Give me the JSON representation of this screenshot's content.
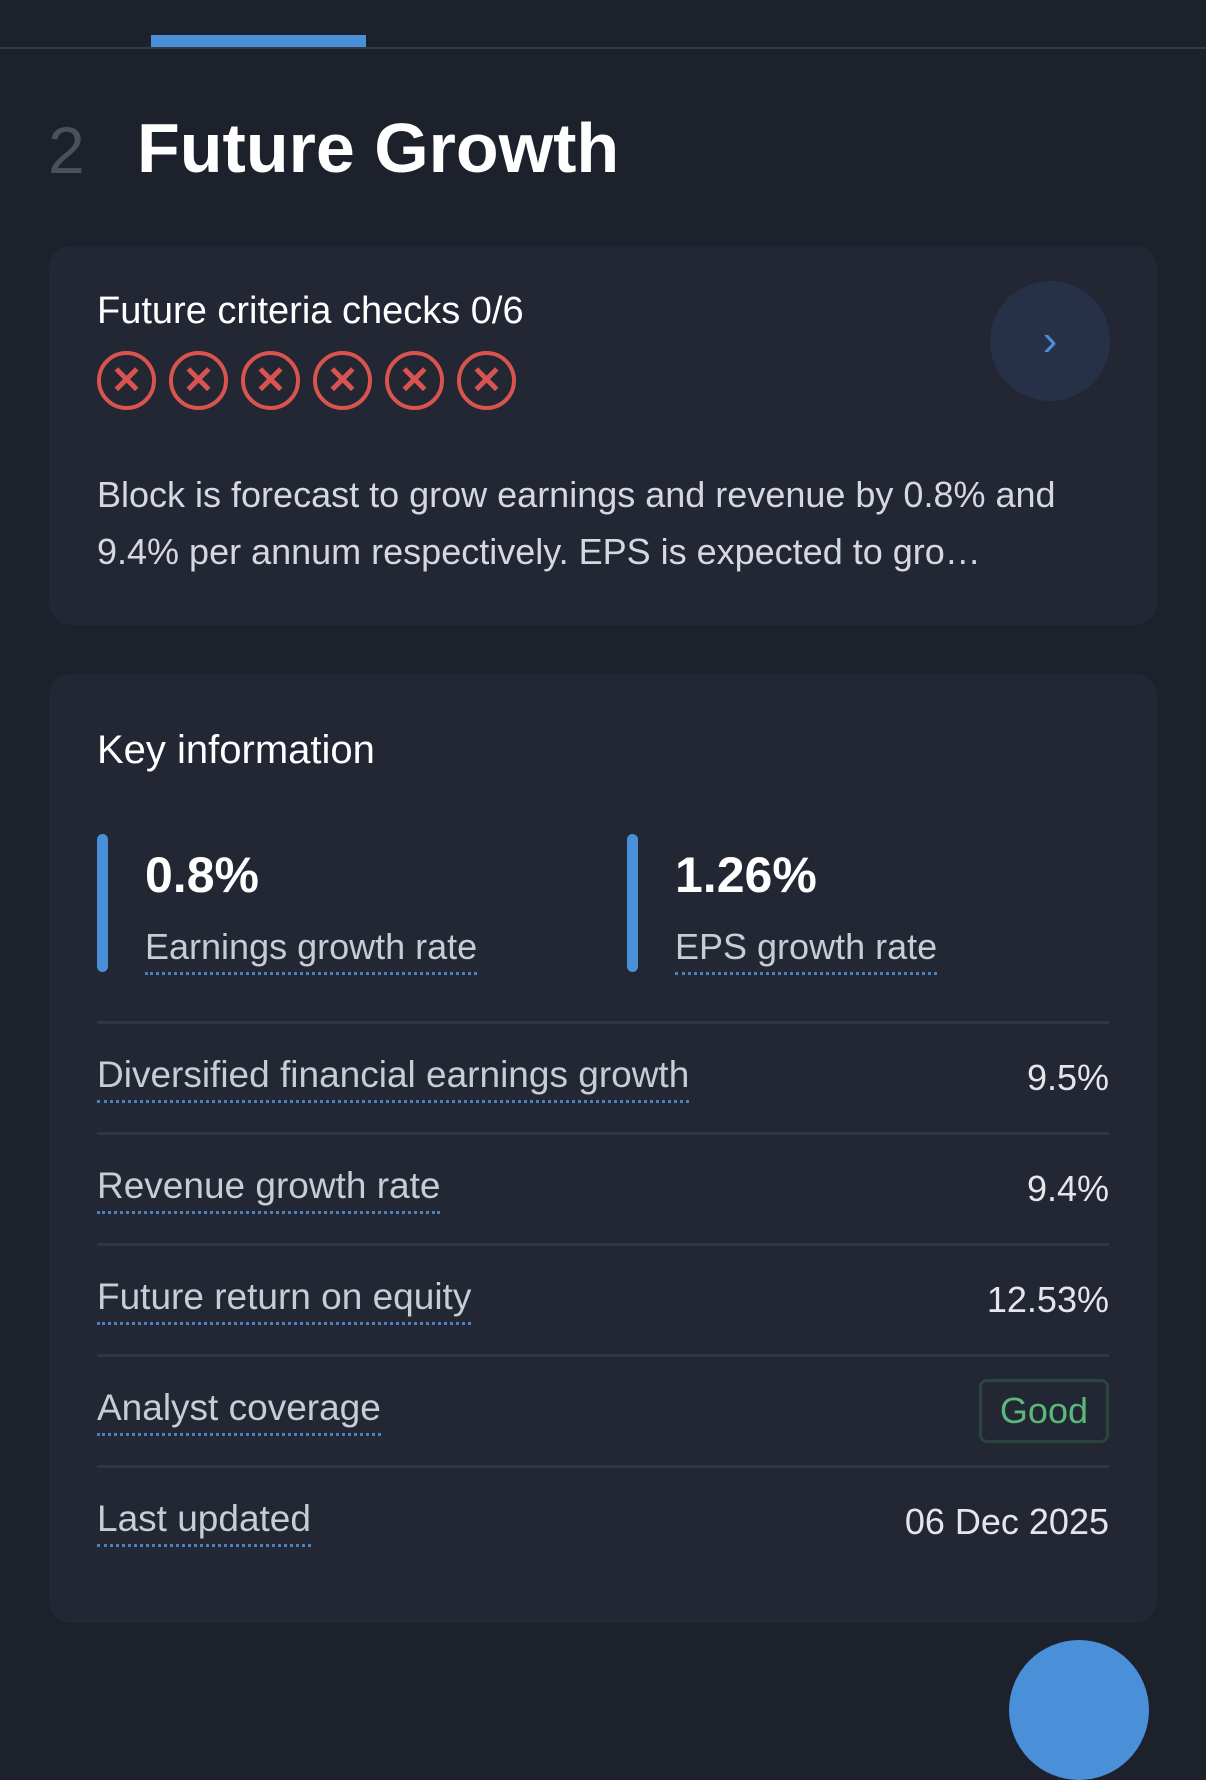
{
  "section": {
    "number": "2",
    "title": "Future Growth"
  },
  "criteria": {
    "title": "Future criteria checks 0/6",
    "passed": 0,
    "total": 6,
    "colors": {
      "fail": "#d9534f",
      "accent": "#4a90d9"
    }
  },
  "description": "Block is forecast to grow earnings and revenue by 0.8% and 9.4% per annum respectively. EPS is expected to gro…",
  "key_info": {
    "title": "Key information",
    "stats": [
      {
        "value": "0.8%",
        "label": "Earnings growth rate"
      },
      {
        "value": "1.26%",
        "label": "EPS growth rate"
      }
    ],
    "rows": [
      {
        "label": "Diversified financial earnings growth",
        "value": "9.5%"
      },
      {
        "label": "Revenue growth rate",
        "value": "9.4%"
      },
      {
        "label": "Future return on equity",
        "value": "12.53%"
      },
      {
        "label": "Analyst coverage",
        "value": "Good"
      },
      {
        "label": "Last updated",
        "value": "06 Dec 2025"
      }
    ]
  }
}
